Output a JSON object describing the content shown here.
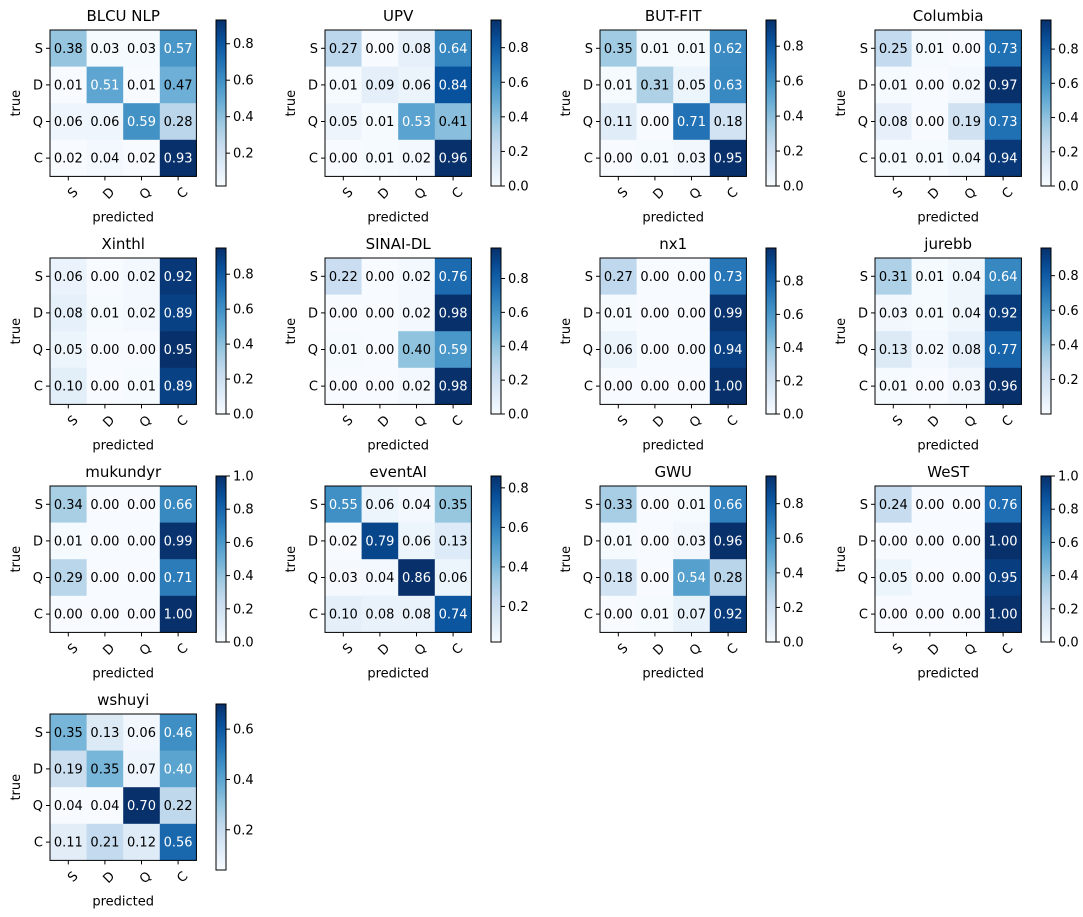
{
  "figure_colormap": "Blues",
  "chart_data": [
    {
      "type": "heatmap",
      "title": "BLCU NLP",
      "xlabel": "predicted",
      "ylabel": "true",
      "row_labels": [
        "S",
        "D",
        "Q",
        "C"
      ],
      "col_labels": [
        "S",
        "D",
        "Q",
        "C"
      ],
      "values": [
        [
          0.38,
          0.03,
          0.03,
          0.57
        ],
        [
          0.01,
          0.51,
          0.01,
          0.47
        ],
        [
          0.06,
          0.06,
          0.59,
          0.28
        ],
        [
          0.02,
          0.04,
          0.02,
          0.93
        ]
      ],
      "vmin": 0.02,
      "vmax": 0.93,
      "colorbar_ticks": [
        "0.2",
        "0.4",
        "0.6",
        "0.8"
      ]
    },
    {
      "type": "heatmap",
      "title": "UPV",
      "xlabel": "predicted",
      "ylabel": "true",
      "row_labels": [
        "S",
        "D",
        "Q",
        "C"
      ],
      "col_labels": [
        "S",
        "D",
        "Q",
        "C"
      ],
      "values": [
        [
          0.27,
          0.0,
          0.08,
          0.64
        ],
        [
          0.01,
          0.09,
          0.06,
          0.84
        ],
        [
          0.05,
          0.01,
          0.53,
          0.41
        ],
        [
          0.0,
          0.01,
          0.02,
          0.96
        ]
      ],
      "vmin": 0.0,
      "vmax": 0.96,
      "colorbar_ticks": [
        "0.0",
        "0.2",
        "0.4",
        "0.6",
        "0.8"
      ]
    },
    {
      "type": "heatmap",
      "title": "BUT-FIT",
      "xlabel": "predicted",
      "ylabel": "true",
      "row_labels": [
        "S",
        "D",
        "Q",
        "C"
      ],
      "col_labels": [
        "S",
        "D",
        "Q",
        "C"
      ],
      "values": [
        [
          0.35,
          0.01,
          0.01,
          0.62
        ],
        [
          0.01,
          0.31,
          0.05,
          0.63
        ],
        [
          0.11,
          0.0,
          0.71,
          0.18
        ],
        [
          0.0,
          0.01,
          0.03,
          0.95
        ]
      ],
      "vmin": 0.0,
      "vmax": 0.95,
      "colorbar_ticks": [
        "0.0",
        "0.2",
        "0.4",
        "0.6",
        "0.8"
      ]
    },
    {
      "type": "heatmap",
      "title": "Columbia",
      "xlabel": "predicted",
      "ylabel": "true",
      "row_labels": [
        "S",
        "D",
        "Q",
        "C"
      ],
      "col_labels": [
        "S",
        "D",
        "Q",
        "C"
      ],
      "values": [
        [
          0.25,
          0.01,
          0.0,
          0.73
        ],
        [
          0.01,
          0.0,
          0.02,
          0.97
        ],
        [
          0.08,
          0.0,
          0.19,
          0.73
        ],
        [
          0.01,
          0.01,
          0.04,
          0.94
        ]
      ],
      "vmin": 0.0,
      "vmax": 0.97,
      "colorbar_ticks": [
        "0.0",
        "0.2",
        "0.4",
        "0.6",
        "0.8"
      ]
    },
    {
      "type": "heatmap",
      "title": "Xinthl",
      "xlabel": "predicted",
      "ylabel": "true",
      "row_labels": [
        "S",
        "D",
        "Q",
        "C"
      ],
      "col_labels": [
        "S",
        "D",
        "Q",
        "C"
      ],
      "values": [
        [
          0.06,
          0.0,
          0.02,
          0.92
        ],
        [
          0.08,
          0.01,
          0.02,
          0.89
        ],
        [
          0.05,
          0.0,
          0.0,
          0.95
        ],
        [
          0.1,
          0.0,
          0.01,
          0.89
        ]
      ],
      "vmin": 0.0,
      "vmax": 0.95,
      "colorbar_ticks": [
        "0.0",
        "0.2",
        "0.4",
        "0.6",
        "0.8"
      ]
    },
    {
      "type": "heatmap",
      "title": "SINAI-DL",
      "xlabel": "predicted",
      "ylabel": "true",
      "row_labels": [
        "S",
        "D",
        "Q",
        "C"
      ],
      "col_labels": [
        "S",
        "D",
        "Q",
        "C"
      ],
      "values": [
        [
          0.22,
          0.0,
          0.02,
          0.76
        ],
        [
          0.0,
          0.0,
          0.02,
          0.98
        ],
        [
          0.01,
          0.0,
          0.4,
          0.59
        ],
        [
          0.0,
          0.0,
          0.02,
          0.98
        ]
      ],
      "vmin": 0.0,
      "vmax": 0.98,
      "colorbar_ticks": [
        "0.0",
        "0.2",
        "0.4",
        "0.6",
        "0.8"
      ]
    },
    {
      "type": "heatmap",
      "title": "nx1",
      "xlabel": "predicted",
      "ylabel": "true",
      "row_labels": [
        "S",
        "D",
        "Q",
        "C"
      ],
      "col_labels": [
        "S",
        "D",
        "Q",
        "C"
      ],
      "values": [
        [
          0.27,
          0.0,
          0.0,
          0.73
        ],
        [
          0.01,
          0.0,
          0.0,
          0.99
        ],
        [
          0.06,
          0.0,
          0.0,
          0.94
        ],
        [
          0.0,
          0.0,
          0.0,
          1.0
        ]
      ],
      "vmin": 0.0,
      "vmax": 1.0,
      "colorbar_ticks": [
        "0.0",
        "0.2",
        "0.4",
        "0.6",
        "0.8"
      ]
    },
    {
      "type": "heatmap",
      "title": "jurebb",
      "xlabel": "predicted",
      "ylabel": "true",
      "row_labels": [
        "S",
        "D",
        "Q",
        "C"
      ],
      "col_labels": [
        "S",
        "D",
        "Q",
        "C"
      ],
      "values": [
        [
          0.31,
          0.01,
          0.04,
          0.64
        ],
        [
          0.03,
          0.01,
          0.04,
          0.92
        ],
        [
          0.13,
          0.02,
          0.08,
          0.77
        ],
        [
          0.01,
          0.0,
          0.03,
          0.96
        ]
      ],
      "vmin": 0.0,
      "vmax": 0.96,
      "colorbar_ticks": [
        "0.2",
        "0.4",
        "0.6",
        "0.8"
      ]
    },
    {
      "type": "heatmap",
      "title": "mukundyr",
      "xlabel": "predicted",
      "ylabel": "true",
      "row_labels": [
        "S",
        "D",
        "Q",
        "C"
      ],
      "col_labels": [
        "S",
        "D",
        "Q",
        "C"
      ],
      "values": [
        [
          0.34,
          0.0,
          0.0,
          0.66
        ],
        [
          0.01,
          0.0,
          0.0,
          0.99
        ],
        [
          0.29,
          0.0,
          0.0,
          0.71
        ],
        [
          0.0,
          0.0,
          0.0,
          1.0
        ]
      ],
      "vmin": 0.0,
      "vmax": 1.0,
      "colorbar_ticks": [
        "0.0",
        "0.2",
        "0.4",
        "0.6",
        "0.8",
        "1.0"
      ]
    },
    {
      "type": "heatmap",
      "title": "eventAI",
      "xlabel": "predicted",
      "ylabel": "true",
      "row_labels": [
        "S",
        "D",
        "Q",
        "C"
      ],
      "col_labels": [
        "S",
        "D",
        "Q",
        "C"
      ],
      "values": [
        [
          0.55,
          0.06,
          0.04,
          0.35
        ],
        [
          0.02,
          0.79,
          0.06,
          0.13
        ],
        [
          0.03,
          0.04,
          0.86,
          0.06
        ],
        [
          0.1,
          0.08,
          0.08,
          0.74
        ]
      ],
      "vmin": 0.02,
      "vmax": 0.86,
      "colorbar_ticks": [
        "0.2",
        "0.4",
        "0.6",
        "0.8"
      ]
    },
    {
      "type": "heatmap",
      "title": "GWU",
      "xlabel": "predicted",
      "ylabel": "true",
      "row_labels": [
        "S",
        "D",
        "Q",
        "C"
      ],
      "col_labels": [
        "S",
        "D",
        "Q",
        "C"
      ],
      "values": [
        [
          0.33,
          0.0,
          0.01,
          0.66
        ],
        [
          0.01,
          0.0,
          0.03,
          0.96
        ],
        [
          0.18,
          0.0,
          0.54,
          0.28
        ],
        [
          0.0,
          0.01,
          0.07,
          0.92
        ]
      ],
      "vmin": 0.0,
      "vmax": 0.96,
      "colorbar_ticks": [
        "0.0",
        "0.2",
        "0.4",
        "0.6",
        "0.8"
      ]
    },
    {
      "type": "heatmap",
      "title": "WeST",
      "xlabel": "predicted",
      "ylabel": "true",
      "row_labels": [
        "S",
        "D",
        "Q",
        "C"
      ],
      "col_labels": [
        "S",
        "D",
        "Q",
        "C"
      ],
      "values": [
        [
          0.24,
          0.0,
          0.0,
          0.76
        ],
        [
          0.0,
          0.0,
          0.0,
          1.0
        ],
        [
          0.05,
          0.0,
          0.0,
          0.95
        ],
        [
          0.0,
          0.0,
          0.0,
          1.0
        ]
      ],
      "vmin": 0.0,
      "vmax": 1.0,
      "colorbar_ticks": [
        "0.0",
        "0.2",
        "0.4",
        "0.6",
        "0.8",
        "1.0"
      ]
    },
    {
      "type": "heatmap",
      "title": "wshuyi",
      "xlabel": "predicted",
      "ylabel": "true",
      "row_labels": [
        "S",
        "D",
        "Q",
        "C"
      ],
      "col_labels": [
        "S",
        "D",
        "Q",
        "C"
      ],
      "values": [
        [
          0.35,
          0.13,
          0.06,
          0.46
        ],
        [
          0.19,
          0.35,
          0.07,
          0.4
        ],
        [
          0.04,
          0.04,
          0.7,
          0.22
        ],
        [
          0.11,
          0.21,
          0.12,
          0.56
        ]
      ],
      "vmin": 0.04,
      "vmax": 0.7,
      "colorbar_ticks": [
        "0.2",
        "0.4",
        "0.6"
      ]
    }
  ]
}
